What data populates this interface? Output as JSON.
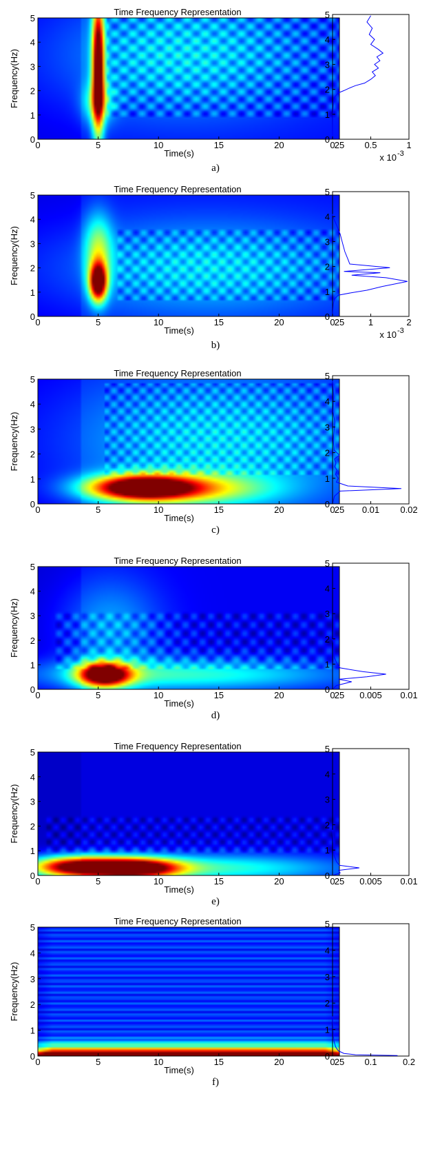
{
  "chart_data": [
    {
      "id": "a",
      "panel_label": "a)",
      "tf": {
        "type": "heatmap",
        "title": "Time Frequency Representation",
        "xlabel": "Time(s)",
        "ylabel": "Frequency(Hz)",
        "xlim": [
          0,
          25
        ],
        "ylim": [
          0,
          5
        ],
        "xticks": [
          "0",
          "5",
          "10",
          "15",
          "20",
          "25"
        ],
        "yticks": [
          "0",
          "1",
          "2",
          "3",
          "4",
          "5"
        ],
        "hotspots": [
          {
            "t": 5,
            "f": 3.0,
            "st": 0.35,
            "sf": 2.0,
            "a": 1.0
          },
          {
            "t": 5,
            "f": 1.5,
            "st": 0.9,
            "sf": 0.6,
            "a": 0.3
          },
          {
            "t": 12,
            "f": 3.5,
            "st": 8,
            "sf": 1.8,
            "a": 0.22
          }
        ],
        "background": 0.14,
        "ripple": {
          "amp": 0.1,
          "period_t": 1.5,
          "period_f": 0.6,
          "t_start": 5.8,
          "f_min": 0.9,
          "f_max": 5
        }
      },
      "spectrum": {
        "type": "line",
        "xlim": [
          0,
          1
        ],
        "ylim": [
          0,
          5
        ],
        "xticks": [
          "0",
          "0.5",
          "1"
        ],
        "yticks": [
          "0",
          "1",
          "2",
          "3",
          "4",
          "5"
        ],
        "exponent": "-3",
        "x": [
          0,
          0.002,
          0.01,
          0.03,
          0.07,
          0.15,
          0.22,
          0.3,
          0.42,
          0.5,
          0.56,
          0.52,
          0.6,
          0.55,
          0.62,
          0.58,
          0.66,
          0.6,
          0.5,
          0.55,
          0.48,
          0.52,
          0.45,
          0.5
        ],
        "y": [
          0,
          0.9,
          1.4,
          1.7,
          1.85,
          1.95,
          2.05,
          2.15,
          2.25,
          2.4,
          2.55,
          2.7,
          2.85,
          3.0,
          3.15,
          3.3,
          3.45,
          3.6,
          3.8,
          4.0,
          4.2,
          4.45,
          4.7,
          4.95
        ]
      }
    },
    {
      "id": "b",
      "panel_label": "b)",
      "tf": {
        "type": "heatmap",
        "title": "Time Frequency Representation",
        "xlabel": "Time(s)",
        "ylabel": "Frequency(Hz)",
        "xlim": [
          0,
          25
        ],
        "ylim": [
          0,
          5
        ],
        "xticks": [
          "0",
          "5",
          "10",
          "15",
          "20",
          "25"
        ],
        "yticks": [
          "0",
          "1",
          "2",
          "3",
          "4",
          "5"
        ],
        "hotspots": [
          {
            "t": 5,
            "f": 1.4,
            "st": 0.5,
            "sf": 0.55,
            "a": 1.0
          },
          {
            "t": 5,
            "f": 2.8,
            "st": 0.8,
            "sf": 1.0,
            "a": 0.35
          },
          {
            "t": 14,
            "f": 2.0,
            "st": 9,
            "sf": 1.4,
            "a": 0.22
          }
        ],
        "background": 0.14,
        "ripple": {
          "amp": 0.09,
          "period_t": 1.3,
          "period_f": 0.6,
          "t_start": 6.5,
          "f_min": 0.7,
          "f_max": 3.6
        }
      },
      "spectrum": {
        "type": "line",
        "xlim": [
          0,
          2
        ],
        "ylim": [
          0,
          5
        ],
        "xticks": [
          "0",
          "1",
          "2"
        ],
        "yticks": [
          "0",
          "1",
          "2",
          "3",
          "4",
          "5"
        ],
        "exponent": "-3",
        "x": [
          0,
          0.02,
          0.05,
          0.15,
          0.5,
          0.9,
          1.3,
          1.96,
          1.4,
          0.5,
          1.25,
          0.3,
          0.7,
          1.5,
          0.45,
          0.4,
          0.32,
          0.25,
          0.2,
          0.12,
          0.05,
          0.01,
          0
        ],
        "y": [
          0,
          0.5,
          0.7,
          0.85,
          0.95,
          1.05,
          1.2,
          1.4,
          1.55,
          1.65,
          1.75,
          1.8,
          1.85,
          1.95,
          2.1,
          2.3,
          2.6,
          3.0,
          3.3,
          3.6,
          3.85,
          4.0,
          4.1
        ]
      }
    },
    {
      "id": "c",
      "panel_label": "c)",
      "tf": {
        "type": "heatmap",
        "title": "Time Frequency Representation",
        "xlabel": "Time(s)",
        "ylabel": "Frequency(Hz)",
        "xlim": [
          0,
          25
        ],
        "ylim": [
          0,
          5
        ],
        "xticks": [
          "0",
          "5",
          "10",
          "15",
          "20",
          "25"
        ],
        "yticks": [
          "0",
          "1",
          "2",
          "3",
          "4",
          "5"
        ],
        "hotspots": [
          {
            "t": 8.5,
            "f": 0.65,
            "st": 3.0,
            "sf": 0.35,
            "a": 1.0
          },
          {
            "t": 13,
            "f": 0.6,
            "st": 4.5,
            "sf": 0.45,
            "a": 0.4
          },
          {
            "t": 15,
            "f": 2.5,
            "st": 9,
            "sf": 2.0,
            "a": 0.22
          }
        ],
        "background": 0.14,
        "ripple": {
          "amp": 0.09,
          "period_t": 1.2,
          "period_f": 0.55,
          "t_start": 5.5,
          "f_min": 1.2,
          "f_max": 4.8
        }
      },
      "spectrum": {
        "type": "line",
        "xlim": [
          0,
          0.02
        ],
        "ylim": [
          0,
          5
        ],
        "xticks": [
          "0",
          "0.01",
          "0.02"
        ],
        "yticks": [
          "0",
          "1",
          "2",
          "3",
          "4",
          "5"
        ],
        "exponent": "",
        "x": [
          0,
          0.0005,
          0.002,
          0.018,
          0.004,
          0.001,
          0.0015,
          0.0008,
          0.0012,
          0.0006,
          0.0009,
          0.0005,
          0.0018,
          0.0004,
          0.0002,
          0.0006,
          0.0001,
          0.0003,
          0
        ],
        "y": [
          0,
          0.3,
          0.5,
          0.6,
          0.7,
          0.85,
          1.0,
          1.15,
          1.3,
          1.45,
          1.6,
          1.75,
          1.9,
          2.1,
          2.5,
          3.2,
          3.6,
          4.2,
          4.8
        ]
      }
    },
    {
      "id": "d",
      "panel_label": "d)",
      "tf": {
        "type": "heatmap",
        "title": "Time Frequency Representation",
        "xlabel": "Time(s)",
        "ylabel": "Frequency(Hz)",
        "xlim": [
          0,
          25
        ],
        "ylim": [
          0,
          5
        ],
        "xticks": [
          "0",
          "5",
          "10",
          "15",
          "20",
          "25"
        ],
        "yticks": [
          "0",
          "1",
          "2",
          "3",
          "4",
          "5"
        ],
        "hotspots": [
          {
            "t": 5.5,
            "f": 0.6,
            "st": 1.5,
            "sf": 0.35,
            "a": 1.0
          },
          {
            "t": 12,
            "f": 0.6,
            "st": 9,
            "sf": 0.45,
            "a": 0.32
          },
          {
            "t": 6,
            "f": 2.5,
            "st": 3,
            "sf": 1.5,
            "a": 0.18
          }
        ],
        "background": 0.12,
        "ripple": {
          "amp": 0.08,
          "period_t": 1.4,
          "period_f": 0.7,
          "t_start": 1.5,
          "f_min": 0.8,
          "f_max": 3.2
        }
      },
      "spectrum": {
        "type": "line",
        "xlim": [
          0,
          0.01
        ],
        "ylim": [
          0,
          5
        ],
        "xticks": [
          "0",
          "0.005",
          "0.01"
        ],
        "yticks": [
          "0",
          "1",
          "2",
          "3",
          "4",
          "5"
        ],
        "exponent": "",
        "x": [
          0,
          0.0005,
          0.0025,
          0.0008,
          0.0045,
          0.007,
          0.004,
          0.001,
          0.0006,
          0.0002,
          0.0001,
          0
        ],
        "y": [
          0,
          0.15,
          0.3,
          0.4,
          0.5,
          0.6,
          0.7,
          0.85,
          1.0,
          1.3,
          1.8,
          2.0
        ]
      }
    },
    {
      "id": "e",
      "panel_label": "e)",
      "tf": {
        "type": "heatmap",
        "title": "Time Frequency Representation",
        "xlabel": "Time(s)",
        "ylabel": "Frequency(Hz)",
        "xlim": [
          0,
          25
        ],
        "ylim": [
          0,
          5
        ],
        "xticks": [
          "0",
          "5",
          "10",
          "15",
          "20",
          "25"
        ],
        "yticks": [
          "0",
          "1",
          "2",
          "3",
          "4",
          "5"
        ],
        "hotspots": [
          {
            "t": 3,
            "f": 0.35,
            "st": 2.6,
            "sf": 0.3,
            "a": 0.9
          },
          {
            "t": 8,
            "f": 0.3,
            "st": 2.6,
            "sf": 0.28,
            "a": 1.0
          },
          {
            "t": 14,
            "f": 0.3,
            "st": 8,
            "sf": 0.4,
            "a": 0.35
          }
        ],
        "background": 0.1,
        "ripple": {
          "amp": 0.07,
          "period_t": 1.2,
          "period_f": 0.6,
          "t_start": 0.5,
          "f_min": 0.9,
          "f_max": 2.4
        }
      },
      "spectrum": {
        "type": "line",
        "xlim": [
          0,
          0.01
        ],
        "ylim": [
          0,
          5
        ],
        "xticks": [
          "0",
          "0.005",
          "0.01"
        ],
        "yticks": [
          "0",
          "1",
          "2",
          "3",
          "4",
          "5"
        ],
        "exponent": "",
        "x": [
          0,
          0.001,
          0.0008,
          0.0035,
          0.0009,
          0.0005,
          0.0002,
          0.0001,
          0
        ],
        "y": [
          0,
          0.1,
          0.2,
          0.3,
          0.4,
          0.55,
          0.8,
          1.2,
          1.8
        ]
      }
    },
    {
      "id": "f",
      "panel_label": "f)",
      "tf": {
        "type": "heatmap",
        "title": "Time Frequency Representation",
        "xlabel": "Time(s)",
        "ylabel": "Frequency(Hz)",
        "xlim": [
          0,
          25
        ],
        "ylim": [
          0,
          5
        ],
        "xticks": [
          "0",
          "5",
          "10",
          "15",
          "20",
          "25"
        ],
        "yticks": [
          "0",
          "1",
          "2",
          "3",
          "4",
          "5"
        ],
        "hotspots": [
          {
            "t": 12.5,
            "f": 0.05,
            "st": 60,
            "sf": 0.12,
            "a": 1.0
          },
          {
            "t": 12.5,
            "f": 0.3,
            "st": 60,
            "sf": 0.2,
            "a": 0.35
          }
        ],
        "background": 0.18,
        "stripes": {
          "amp": 0.07,
          "period_f": 0.22
        }
      },
      "spectrum": {
        "type": "line",
        "xlim": [
          0,
          0.2
        ],
        "ylim": [
          0,
          5
        ],
        "xticks": [
          "0",
          "0.1",
          "0.2"
        ],
        "yticks": [
          "0",
          "1",
          "2",
          "3",
          "4",
          "5"
        ],
        "exponent": "",
        "x": [
          0.17,
          0.06,
          0.03,
          0.015,
          0.008,
          0.004,
          0.002,
          0.001,
          0
        ],
        "y": [
          0.02,
          0.05,
          0.1,
          0.2,
          0.35,
          0.55,
          0.8,
          1.1,
          1.5
        ]
      }
    }
  ]
}
